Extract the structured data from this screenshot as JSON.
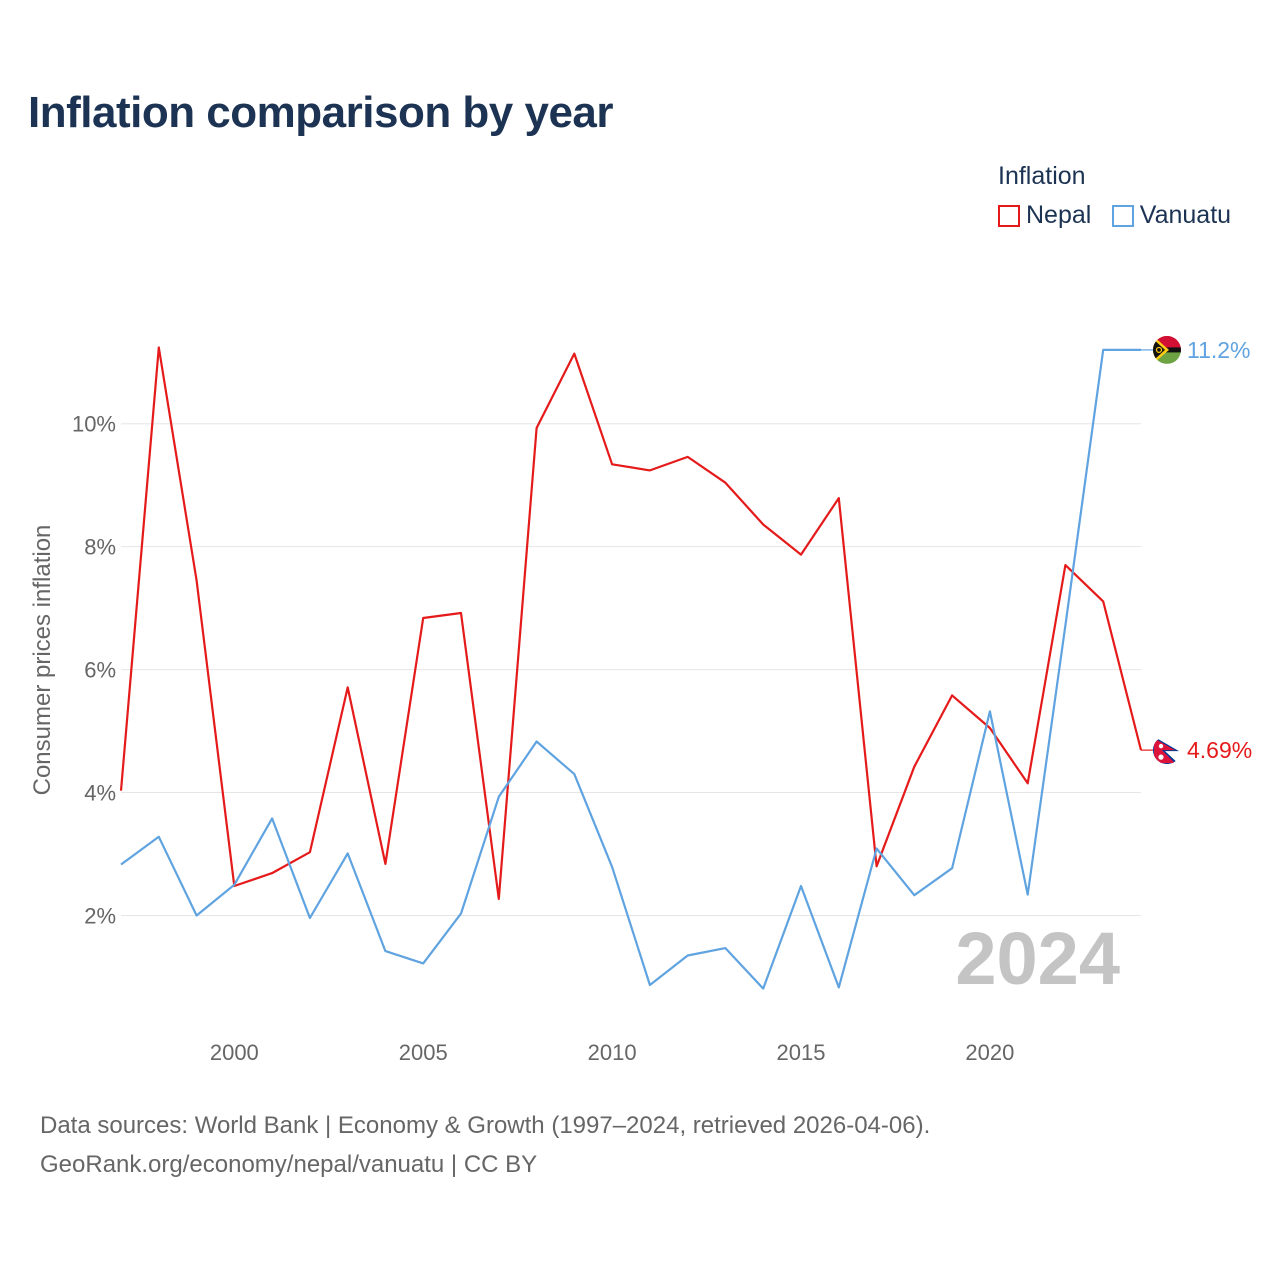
{
  "title": "Inflation comparison by year",
  "legend": {
    "title": "Inflation",
    "items": [
      {
        "name": "Nepal",
        "color": "#e51a1a"
      },
      {
        "name": "Vanuatu",
        "color": "#5fa3e0"
      }
    ]
  },
  "source": {
    "line1": "Data sources: World Bank | Economy & Growth (1997–2024, retrieved 2026-04-06).",
    "line2": "GeoRank.org/economy/nepal/vanuatu | CC BY"
  },
  "chart_data": {
    "type": "line",
    "title": "Inflation comparison by year",
    "xlabel": "",
    "ylabel": "Consumer prices inflation",
    "xlim": [
      1997,
      2024
    ],
    "ylim": [
      0.3,
      12.5
    ],
    "x_ticks": [
      2000,
      2005,
      2010,
      2015,
      2020
    ],
    "y_ticks": [
      2,
      4,
      6,
      8,
      10
    ],
    "y_tick_labels": [
      "2%",
      "4%",
      "6%",
      "8%",
      "10%"
    ],
    "grid": true,
    "legend_position": "top-right",
    "year_watermark": "2024",
    "x": [
      1997,
      1998,
      1999,
      2000,
      2001,
      2002,
      2003,
      2004,
      2005,
      2006,
      2007,
      2008,
      2009,
      2010,
      2011,
      2012,
      2013,
      2014,
      2015,
      2016,
      2017,
      2018,
      2019,
      2020,
      2021,
      2022,
      2023,
      2024
    ],
    "series": [
      {
        "name": "Nepal",
        "color": "#e51a1a",
        "values": [
          4.03,
          11.24,
          7.45,
          2.48,
          2.69,
          3.03,
          5.71,
          2.84,
          6.84,
          6.92,
          2.27,
          9.93,
          11.14,
          9.34,
          9.24,
          9.46,
          9.04,
          8.36,
          7.87,
          8.79,
          2.8,
          4.42,
          5.58,
          5.05,
          4.15,
          7.7,
          7.11,
          4.69
        ],
        "end_label": "4.69%",
        "flag": "nepal"
      },
      {
        "name": "Vanuatu",
        "color": "#5fa3e0",
        "values": [
          2.83,
          3.28,
          2.0,
          2.5,
          3.58,
          1.96,
          3.01,
          1.42,
          1.22,
          2.03,
          3.93,
          4.83,
          4.3,
          2.79,
          0.87,
          1.35,
          1.47,
          0.81,
          2.48,
          0.83,
          3.09,
          2.33,
          2.77,
          5.32,
          2.34,
          6.72,
          11.2,
          11.2
        ],
        "end_label": "11.2%",
        "flag": "vanuatu"
      }
    ]
  }
}
